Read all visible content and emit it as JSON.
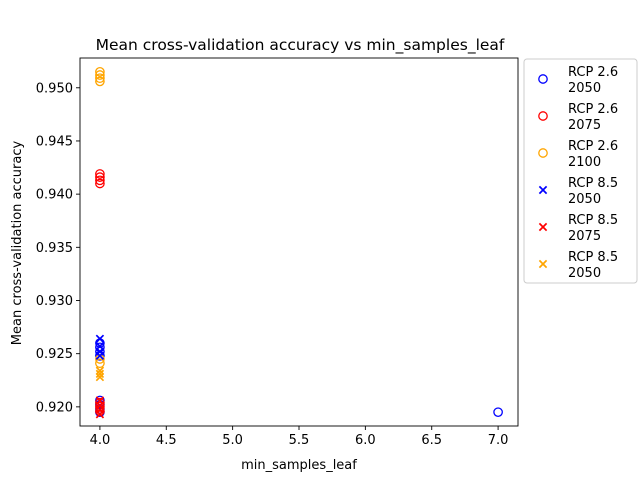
{
  "chart_data": {
    "type": "scatter",
    "title": "Mean cross-validation accuracy vs min_samples_leaf",
    "xlabel": "min_samples_leaf",
    "ylabel": "Mean cross-validation accuracy",
    "xlim": [
      3.85,
      7.15
    ],
    "ylim": [
      0.9182,
      0.9528
    ],
    "xticks": [
      4.0,
      4.5,
      5.0,
      5.5,
      6.0,
      6.5,
      7.0
    ],
    "xtick_labels": [
      "4.0",
      "4.5",
      "5.0",
      "5.5",
      "6.0",
      "6.5",
      "7.0"
    ],
    "yticks": [
      0.92,
      0.925,
      0.93,
      0.935,
      0.94,
      0.945,
      0.95
    ],
    "ytick_labels": [
      "0.920",
      "0.925",
      "0.930",
      "0.935",
      "0.940",
      "0.945",
      "0.950"
    ],
    "grid": false,
    "legend_position": "outside-right",
    "series": [
      {
        "name": "RCP 2.6\n2050",
        "marker": "circle",
        "color": "#0000ff",
        "points": [
          [
            4,
            0.9206
          ],
          [
            4,
            0.9202
          ],
          [
            4,
            0.9198
          ],
          [
            4,
            0.9195
          ],
          [
            4,
            0.9248
          ],
          [
            4,
            0.9252
          ],
          [
            4,
            0.9256
          ],
          [
            4,
            0.926
          ],
          [
            7,
            0.9195
          ]
        ]
      },
      {
        "name": "RCP 2.6\n2075",
        "marker": "circle",
        "color": "#ff0000",
        "points": [
          [
            4,
            0.941
          ],
          [
            4,
            0.9413
          ],
          [
            4,
            0.9416
          ],
          [
            4,
            0.9419
          ],
          [
            4,
            0.9196
          ],
          [
            4,
            0.92
          ],
          [
            4,
            0.9204
          ]
        ]
      },
      {
        "name": "RCP 2.6\n2100",
        "marker": "circle",
        "color": "#ffa500",
        "points": [
          [
            4,
            0.9506
          ],
          [
            4,
            0.9509
          ],
          [
            4,
            0.9512
          ],
          [
            4,
            0.9515
          ],
          [
            4,
            0.9241
          ],
          [
            4,
            0.9245
          ]
        ]
      },
      {
        "name": "RCP 8.5\n2050",
        "marker": "x",
        "color": "#0000ff",
        "points": [
          [
            4,
            0.9264
          ],
          [
            4,
            0.9257
          ],
          [
            4,
            0.9252
          ],
          [
            4,
            0.9248
          ]
        ]
      },
      {
        "name": "RCP 8.5\n2075",
        "marker": "x",
        "color": "#ff0000",
        "points": [
          [
            4,
            0.9206
          ],
          [
            4,
            0.9201
          ],
          [
            4,
            0.9197
          ],
          [
            4,
            0.9193
          ]
        ]
      },
      {
        "name": "RCP 8.5\n2050",
        "marker": "x",
        "color": "#ffa500",
        "points": [
          [
            4,
            0.9234
          ],
          [
            4,
            0.9231
          ],
          [
            4,
            0.9228
          ]
        ]
      }
    ]
  }
}
